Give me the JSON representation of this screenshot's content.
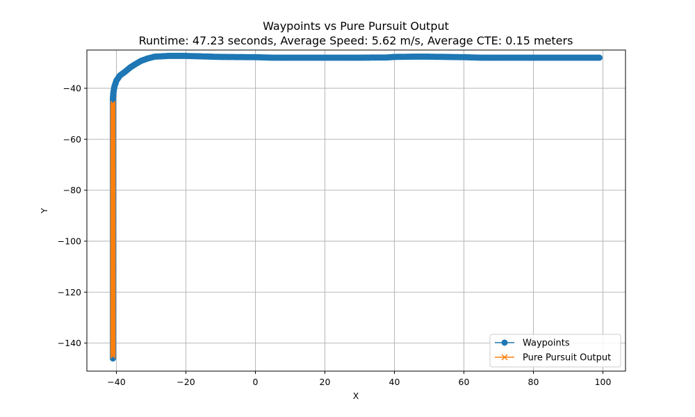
{
  "chart_data": {
    "type": "line",
    "title": "Waypoints vs Pure Pursuit Output",
    "subtitle": "Runtime: 47.23 seconds, Average Speed: 5.62 m/s, Average CTE: 0.15 meters",
    "xlabel": "X",
    "ylabel": "Y",
    "xlim": [
      -48.5,
      106.5
    ],
    "ylim": [
      -151,
      -25
    ],
    "xticks": [
      -40,
      -20,
      0,
      20,
      40,
      60,
      80,
      100
    ],
    "yticks": [
      -140,
      -120,
      -100,
      -80,
      -60,
      -40
    ],
    "xtick_labels": [
      "−40",
      "−20",
      "0",
      "20",
      "40",
      "60",
      "80",
      "100"
    ],
    "ytick_labels": [
      "−140",
      "−120",
      "−100",
      "−80",
      "−60",
      "−40"
    ],
    "grid": true,
    "legend_position": "bottom-right",
    "series": [
      {
        "name": "Waypoints",
        "color": "#1f77b4",
        "marker": "circle",
        "points": [
          [
            -41,
            -146
          ],
          [
            -41,
            -120
          ],
          [
            -41,
            -100
          ],
          [
            -41,
            -80
          ],
          [
            -41,
            -60
          ],
          [
            -41,
            -46
          ],
          [
            -41,
            -44
          ],
          [
            -40.9,
            -42
          ],
          [
            -40.6,
            -39.5
          ],
          [
            -40,
            -37
          ],
          [
            -39,
            -35
          ],
          [
            -37.5,
            -33.5
          ],
          [
            -36,
            -31.8
          ],
          [
            -34.5,
            -30.5
          ],
          [
            -33,
            -29.3
          ],
          [
            -31,
            -28.3
          ],
          [
            -29,
            -27.6
          ],
          [
            -25,
            -27.3
          ],
          [
            -20,
            -27.3
          ],
          [
            -15,
            -27.5
          ],
          [
            -10,
            -27.7
          ],
          [
            0,
            -27.8
          ],
          [
            5,
            -28
          ],
          [
            10,
            -28
          ],
          [
            20,
            -28
          ],
          [
            30,
            -28
          ],
          [
            38,
            -27.9
          ],
          [
            40,
            -27.7
          ],
          [
            45,
            -27.6
          ],
          [
            50,
            -27.6
          ],
          [
            55,
            -27.7
          ],
          [
            60,
            -27.8
          ],
          [
            65,
            -28
          ],
          [
            70,
            -28
          ],
          [
            80,
            -28
          ],
          [
            90,
            -28
          ],
          [
            99,
            -28
          ]
        ]
      },
      {
        "name": "Pure Pursuit Output",
        "color": "#ff7f0e",
        "marker": "x",
        "points": [
          [
            -41,
            -145
          ],
          [
            -41,
            -130
          ],
          [
            -41,
            -115
          ],
          [
            -41,
            -100
          ],
          [
            -41,
            -85
          ],
          [
            -41,
            -70
          ],
          [
            -41,
            -60
          ],
          [
            -41,
            -50
          ],
          [
            -41,
            -46
          ]
        ]
      }
    ]
  }
}
